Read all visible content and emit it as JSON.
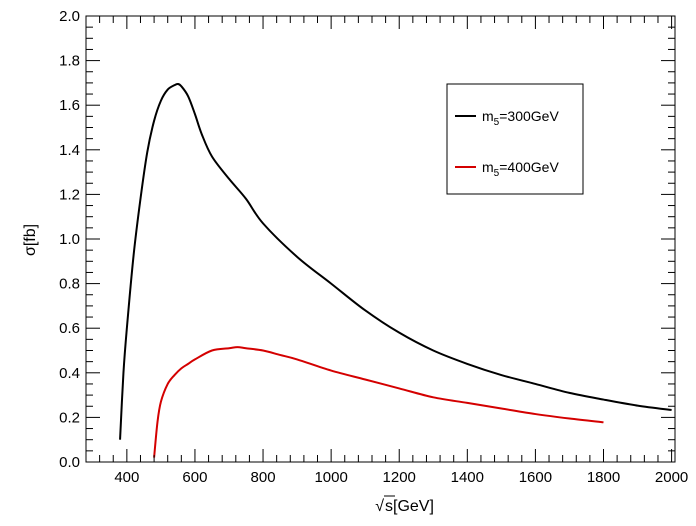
{
  "chart_data": {
    "type": "line",
    "title": "",
    "xlabel": "s[GeV]",
    "xlabel_sqrt_symbol": "√",
    "ylabel": "σ[fb]",
    "xlim": [
      280,
      2010
    ],
    "ylim": [
      0.0,
      2.0
    ],
    "xticks": [
      400,
      600,
      800,
      1000,
      1200,
      1400,
      1600,
      1800,
      2000
    ],
    "yticks": [
      "0.0",
      "0.2",
      "0.4",
      "0.6",
      "0.8",
      "1.0",
      "1.2",
      "1.4",
      "1.6",
      "1.8",
      "2.0"
    ],
    "grid": false,
    "legend_position": "top-right",
    "series": [
      {
        "name": "m5=300GeV",
        "name_main": "m",
        "name_sub": "5",
        "name_rest": "=300GeV",
        "color": "#000000",
        "x": [
          380,
          390,
          400,
          420,
          440,
          460,
          480,
          500,
          520,
          540,
          550,
          560,
          580,
          600,
          620,
          650,
          700,
          750,
          800,
          900,
          1000,
          1100,
          1200,
          1300,
          1400,
          1500,
          1600,
          1700,
          1800,
          1900,
          2000
        ],
        "y": [
          0.1,
          0.4,
          0.6,
          0.93,
          1.18,
          1.39,
          1.53,
          1.62,
          1.67,
          1.69,
          1.695,
          1.685,
          1.64,
          1.56,
          1.47,
          1.37,
          1.27,
          1.18,
          1.07,
          0.92,
          0.8,
          0.68,
          0.58,
          0.5,
          0.44,
          0.39,
          0.35,
          0.31,
          0.28,
          0.253,
          0.233
        ]
      },
      {
        "name": "m5=400GeV",
        "name_main": "m",
        "name_sub": "5",
        "name_rest": "=400GeV",
        "color": "#d40000",
        "x": [
          480,
          490,
          500,
          520,
          540,
          560,
          580,
          600,
          650,
          700,
          725,
          750,
          800,
          850,
          900,
          1000,
          1100,
          1200,
          1300,
          1400,
          1500,
          1600,
          1700,
          1800
        ],
        "y": [
          0.02,
          0.18,
          0.27,
          0.35,
          0.39,
          0.42,
          0.44,
          0.46,
          0.5,
          0.51,
          0.515,
          0.51,
          0.5,
          0.48,
          0.46,
          0.41,
          0.37,
          0.33,
          0.29,
          0.265,
          0.24,
          0.215,
          0.195,
          0.178
        ]
      }
    ]
  }
}
